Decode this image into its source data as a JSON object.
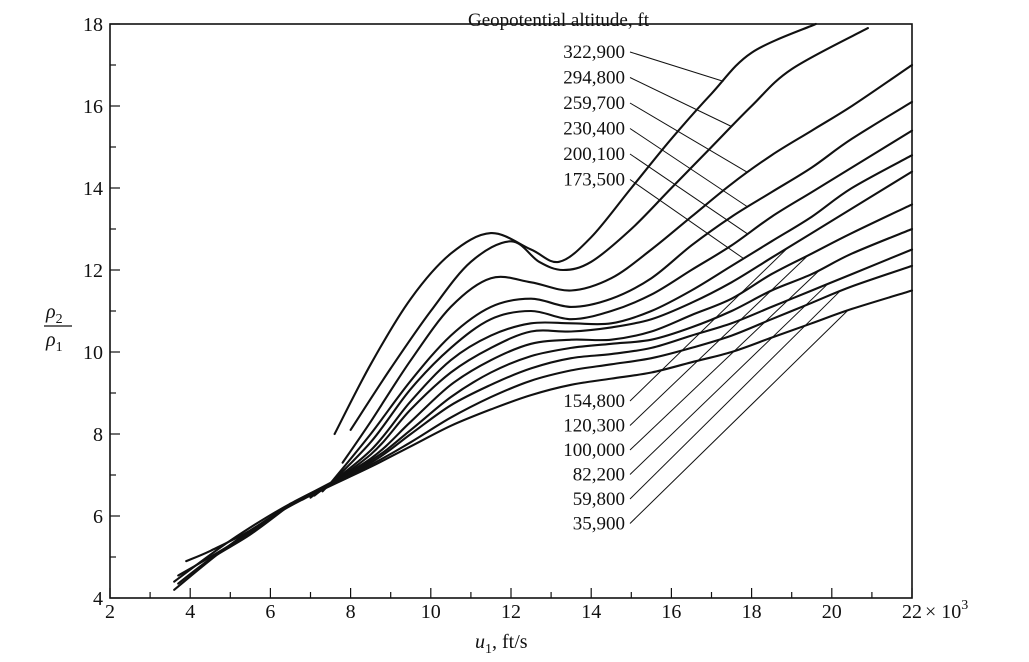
{
  "chart_data": {
    "type": "line",
    "title": "",
    "xlabel": "u1, ft/s",
    "xlabel_main": "u",
    "xlabel_sub": "1",
    "xlabel_rest": ", ft/s",
    "x_multiplier": "× 10",
    "x_multiplier_exp": "3",
    "ylabel_num": "ρ",
    "ylabel_num_sub": "2",
    "ylabel_den": "ρ",
    "ylabel_den_sub": "1",
    "xlim": [
      2,
      22
    ],
    "ylim": [
      4,
      18
    ],
    "x_ticks": [
      "2",
      "4",
      "6",
      "8",
      "10",
      "12",
      "14",
      "16",
      "18",
      "20",
      "22"
    ],
    "y_ticks": [
      "4",
      "6",
      "8",
      "10",
      "12",
      "14",
      "16",
      "18"
    ],
    "legend_title": "Geopotential altitude, ft",
    "grid": false,
    "series": [
      {
        "name": "322,900",
        "points": [
          [
            7.6,
            8.0
          ],
          [
            8.5,
            9.7
          ],
          [
            9.5,
            11.3
          ],
          [
            10.5,
            12.4
          ],
          [
            11.5,
            12.9
          ],
          [
            12.5,
            12.5
          ],
          [
            13.2,
            12.2
          ],
          [
            14,
            12.8
          ],
          [
            15,
            14.0
          ],
          [
            16,
            15.2
          ],
          [
            17,
            16.3
          ],
          [
            18,
            17.3
          ],
          [
            19.6,
            18.0
          ]
        ]
      },
      {
        "name": "294,800",
        "points": [
          [
            8.0,
            8.1
          ],
          [
            9.0,
            9.6
          ],
          [
            10,
            11.0
          ],
          [
            11,
            12.2
          ],
          [
            12,
            12.7
          ],
          [
            12.7,
            12.2
          ],
          [
            13.3,
            12.0
          ],
          [
            14,
            12.2
          ],
          [
            15,
            13.0
          ],
          [
            16,
            14.0
          ],
          [
            17,
            15.0
          ],
          [
            18,
            16.0
          ],
          [
            19,
            16.9
          ],
          [
            20.9,
            17.9
          ]
        ]
      },
      {
        "name": "259,700",
        "points": [
          [
            7.8,
            7.3
          ],
          [
            8.5,
            8.3
          ],
          [
            9.5,
            9.8
          ],
          [
            10.5,
            11.1
          ],
          [
            11.5,
            11.8
          ],
          [
            12.5,
            11.7
          ],
          [
            13.5,
            11.5
          ],
          [
            14.5,
            11.8
          ],
          [
            15.5,
            12.5
          ],
          [
            16.5,
            13.3
          ],
          [
            17.5,
            14.1
          ],
          [
            18.5,
            14.8
          ],
          [
            19.5,
            15.4
          ],
          [
            20.5,
            16.0
          ],
          [
            22,
            17.0
          ]
        ]
      },
      {
        "name": "230,400",
        "points": [
          [
            7.5,
            6.8
          ],
          [
            8.5,
            8.0
          ],
          [
            9.5,
            9.3
          ],
          [
            10.5,
            10.4
          ],
          [
            11.5,
            11.1
          ],
          [
            12.5,
            11.3
          ],
          [
            13.5,
            11.1
          ],
          [
            14.5,
            11.3
          ],
          [
            15.5,
            11.8
          ],
          [
            16.5,
            12.6
          ],
          [
            17.5,
            13.3
          ],
          [
            18.5,
            13.9
          ],
          [
            19.5,
            14.5
          ],
          [
            20.5,
            15.2
          ],
          [
            22,
            16.1
          ]
        ]
      },
      {
        "name": "200,100",
        "points": [
          [
            7.3,
            6.6
          ],
          [
            8.5,
            7.8
          ],
          [
            9.5,
            9.1
          ],
          [
            10.5,
            10.1
          ],
          [
            11.5,
            10.8
          ],
          [
            12.5,
            11.0
          ],
          [
            13.5,
            10.8
          ],
          [
            14.5,
            11.0
          ],
          [
            15.5,
            11.4
          ],
          [
            16.5,
            12.0
          ],
          [
            17.5,
            12.6
          ],
          [
            18.5,
            13.3
          ],
          [
            19.5,
            13.9
          ],
          [
            20.5,
            14.5
          ],
          [
            22,
            15.4
          ]
        ]
      },
      {
        "name": "173,500",
        "points": [
          [
            7.1,
            6.5
          ],
          [
            8.5,
            7.6
          ],
          [
            9.5,
            8.8
          ],
          [
            10.5,
            9.8
          ],
          [
            11.5,
            10.4
          ],
          [
            12.5,
            10.7
          ],
          [
            13.5,
            10.7
          ],
          [
            14.5,
            10.7
          ],
          [
            15.5,
            11.0
          ],
          [
            16.5,
            11.5
          ],
          [
            17.5,
            12.1
          ],
          [
            18.5,
            12.7
          ],
          [
            19.5,
            13.3
          ],
          [
            20.5,
            14.0
          ],
          [
            22,
            14.8
          ]
        ]
      },
      {
        "name": "154,800",
        "points": [
          [
            7.0,
            6.45
          ],
          [
            8.5,
            7.5
          ],
          [
            9.5,
            8.6
          ],
          [
            10.5,
            9.5
          ],
          [
            11.5,
            10.1
          ],
          [
            12.5,
            10.5
          ],
          [
            13.5,
            10.5
          ],
          [
            14.5,
            10.6
          ],
          [
            15.5,
            10.8
          ],
          [
            16.5,
            11.2
          ],
          [
            17.5,
            11.7
          ],
          [
            18.5,
            12.3
          ],
          [
            19.5,
            12.9
          ],
          [
            20.5,
            13.5
          ],
          [
            22,
            14.4
          ]
        ]
      },
      {
        "name": "120,300",
        "points": [
          [
            6.8,
            6.4
          ],
          [
            8.5,
            7.4
          ],
          [
            9.5,
            8.3
          ],
          [
            10.5,
            9.2
          ],
          [
            11.5,
            9.8
          ],
          [
            12.5,
            10.2
          ],
          [
            13.5,
            10.3
          ],
          [
            14.5,
            10.3
          ],
          [
            15.5,
            10.5
          ],
          [
            16.5,
            10.9
          ],
          [
            17.5,
            11.3
          ],
          [
            18.5,
            11.9
          ],
          [
            19.5,
            12.4
          ],
          [
            20.5,
            12.9
          ],
          [
            22,
            13.6
          ]
        ]
      },
      {
        "name": "100,000",
        "points": [
          [
            6.6,
            6.35
          ],
          [
            8.5,
            7.35
          ],
          [
            9.5,
            8.1
          ],
          [
            10.5,
            8.9
          ],
          [
            11.5,
            9.5
          ],
          [
            12.5,
            9.9
          ],
          [
            13.5,
            10.1
          ],
          [
            14.5,
            10.2
          ],
          [
            15.5,
            10.3
          ],
          [
            16.5,
            10.6
          ],
          [
            17.5,
            11.0
          ],
          [
            18.5,
            11.5
          ],
          [
            19.5,
            11.9
          ],
          [
            20.5,
            12.4
          ],
          [
            22,
            13.0
          ]
        ]
      },
      {
        "name": "82,200",
        "points": [
          [
            6.5,
            6.3
          ],
          [
            8.5,
            7.3
          ],
          [
            9.5,
            8.0
          ],
          [
            10.5,
            8.7
          ],
          [
            11.5,
            9.2
          ],
          [
            12.5,
            9.6
          ],
          [
            13.5,
            9.85
          ],
          [
            14.5,
            9.95
          ],
          [
            15.5,
            10.1
          ],
          [
            16.5,
            10.4
          ],
          [
            17.5,
            10.7
          ],
          [
            18.5,
            11.1
          ],
          [
            19.5,
            11.5
          ],
          [
            20.5,
            11.9
          ],
          [
            22,
            12.5
          ]
        ]
      },
      {
        "name": "59,800",
        "points": [
          [
            3.6,
            4.4
          ],
          [
            5,
            5.4
          ],
          [
            6.5,
            6.3
          ],
          [
            8.5,
            7.25
          ],
          [
            9.5,
            7.8
          ],
          [
            10.5,
            8.4
          ],
          [
            11.5,
            8.9
          ],
          [
            12.5,
            9.3
          ],
          [
            13.5,
            9.55
          ],
          [
            14.5,
            9.7
          ],
          [
            15.5,
            9.85
          ],
          [
            16.5,
            10.1
          ],
          [
            17.5,
            10.4
          ],
          [
            18.5,
            10.8
          ],
          [
            19.5,
            11.2
          ],
          [
            20.5,
            11.6
          ],
          [
            22,
            12.1
          ]
        ]
      },
      {
        "name": "35,900",
        "points": [
          [
            3.6,
            4.2
          ],
          [
            5,
            5.3
          ],
          [
            6.5,
            6.25
          ],
          [
            8.5,
            7.2
          ],
          [
            9.5,
            7.7
          ],
          [
            10.5,
            8.2
          ],
          [
            11.5,
            8.6
          ],
          [
            12.5,
            8.95
          ],
          [
            13.5,
            9.2
          ],
          [
            14.5,
            9.35
          ],
          [
            15.5,
            9.5
          ],
          [
            16.5,
            9.75
          ],
          [
            17.5,
            10.0
          ],
          [
            18.5,
            10.35
          ],
          [
            19.5,
            10.7
          ],
          [
            20.5,
            11.05
          ],
          [
            22,
            11.5
          ]
        ]
      },
      {
        "name": "",
        "points": [
          [
            3.9,
            4.9
          ],
          [
            4.5,
            5.15
          ],
          [
            5.5,
            5.65
          ],
          [
            6.5,
            6.3
          ]
        ]
      },
      {
        "name": "",
        "points": [
          [
            3.7,
            4.55
          ],
          [
            4.5,
            5.0
          ],
          [
            5.5,
            5.6
          ],
          [
            6.5,
            6.3
          ]
        ]
      },
      {
        "name": "",
        "points": [
          [
            3.7,
            4.35
          ],
          [
            4.5,
            4.95
          ],
          [
            5.5,
            5.55
          ],
          [
            6.5,
            6.28
          ]
        ]
      }
    ],
    "annotations_top": [
      "322,900",
      "294,800",
      "259,700",
      "230,400",
      "200,100",
      "173,500"
    ],
    "annotations_bottom": [
      "154,800",
      "120,300",
      "100,000",
      "82,200",
      "59,800",
      "35,900"
    ]
  }
}
